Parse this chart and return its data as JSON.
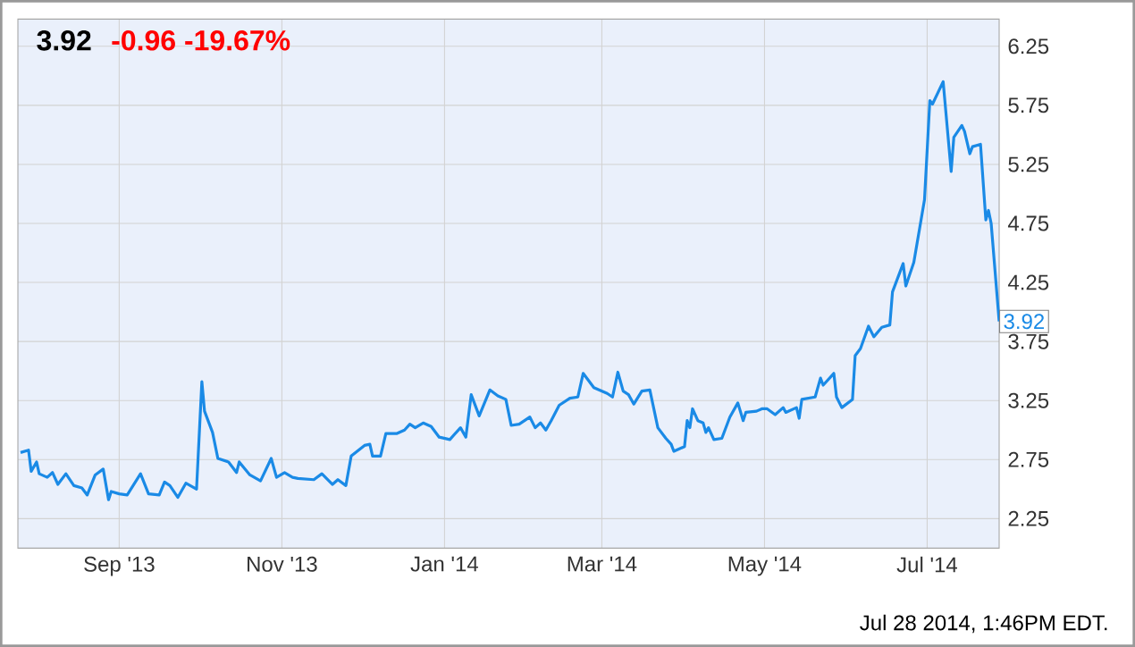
{
  "chart_data": {
    "type": "line",
    "title": "3.92",
    "subtitle": "-0.96  -19.67%",
    "x": [
      "2013-07-26",
      "2013-07-29",
      "2013-07-30",
      "2013-08-01",
      "2013-08-02",
      "2013-08-05",
      "2013-08-07",
      "2013-08-09",
      "2013-08-12",
      "2013-08-15",
      "2013-08-18",
      "2013-08-20",
      "2013-08-23",
      "2013-08-26",
      "2013-08-28",
      "2013-08-29",
      "2013-09-01",
      "2013-09-04",
      "2013-09-09",
      "2013-09-12",
      "2013-09-16",
      "2013-09-18",
      "2013-09-20",
      "2013-09-23",
      "2013-09-26",
      "2013-09-30",
      "2013-10-02",
      "2013-10-03",
      "2013-10-06",
      "2013-10-08",
      "2013-10-12",
      "2013-10-15",
      "2013-10-16",
      "2013-10-20",
      "2013-10-24",
      "2013-10-28",
      "2013-10-30",
      "2013-11-02",
      "2013-11-05",
      "2013-11-07",
      "2013-11-13",
      "2013-11-16",
      "2013-11-20",
      "2013-11-22",
      "2013-11-25",
      "2013-11-27",
      "2013-12-02",
      "2013-12-04",
      "2013-12-05",
      "2013-12-08",
      "2013-12-10",
      "2013-12-14",
      "2013-12-17",
      "2013-12-19",
      "2013-12-21",
      "2013-12-24",
      "2013-12-27",
      "2013-12-30",
      "2014-01-03",
      "2014-01-07",
      "2014-01-09",
      "2014-01-11",
      "2014-01-14",
      "2014-01-18",
      "2014-01-21",
      "2014-01-24",
      "2014-01-26",
      "2014-01-29",
      "2014-02-02",
      "2014-02-04",
      "2014-02-06",
      "2014-02-08",
      "2014-02-10",
      "2014-02-13",
      "2014-02-17",
      "2014-02-20",
      "2014-02-22",
      "2014-02-26",
      "2014-03-03",
      "2014-03-05",
      "2014-03-07",
      "2014-03-09",
      "2014-03-11",
      "2014-03-13",
      "2014-03-16",
      "2014-03-19",
      "2014-03-22",
      "2014-03-25",
      "2014-03-27",
      "2014-03-28",
      "2014-04-01",
      "2014-04-02",
      "2014-04-03",
      "2014-04-04",
      "2014-04-06",
      "2014-04-08",
      "2014-04-09",
      "2014-04-10",
      "2014-04-12",
      "2014-04-15",
      "2014-04-18",
      "2014-04-21",
      "2014-04-23",
      "2014-04-24",
      "2014-04-28",
      "2014-04-30",
      "2014-05-02",
      "2014-05-05",
      "2014-05-08",
      "2014-05-09",
      "2014-05-13",
      "2014-05-14",
      "2014-05-15",
      "2014-05-20",
      "2014-05-22",
      "2014-05-23",
      "2014-05-27",
      "2014-05-28",
      "2014-05-30",
      "2014-06-03",
      "2014-06-04",
      "2014-06-06",
      "2014-06-09",
      "2014-06-11",
      "2014-06-14",
      "2014-06-17",
      "2014-06-18",
      "2014-06-22",
      "2014-06-23",
      "2014-06-26",
      "2014-06-30",
      "2014-07-02",
      "2014-07-03",
      "2014-07-07",
      "2014-07-10",
      "2014-07-11",
      "2014-07-14",
      "2014-07-15",
      "2014-07-17",
      "2014-07-18",
      "2014-07-21",
      "2014-07-23",
      "2014-07-24",
      "2014-07-25",
      "2014-07-28"
    ],
    "values": [
      2.81,
      2.83,
      2.65,
      2.73,
      2.63,
      2.6,
      2.64,
      2.54,
      2.63,
      2.53,
      2.51,
      2.45,
      2.62,
      2.67,
      2.41,
      2.48,
      2.46,
      2.45,
      2.63,
      2.46,
      2.45,
      2.56,
      2.53,
      2.43,
      2.55,
      2.5,
      3.41,
      3.16,
      2.98,
      2.76,
      2.73,
      2.64,
      2.73,
      2.62,
      2.57,
      2.76,
      2.6,
      2.64,
      2.6,
      2.59,
      2.58,
      2.63,
      2.54,
      2.58,
      2.53,
      2.78,
      2.87,
      2.88,
      2.78,
      2.78,
      2.97,
      2.97,
      3.0,
      3.05,
      3.02,
      3.06,
      3.03,
      2.94,
      2.92,
      3.02,
      2.94,
      3.3,
      3.12,
      3.34,
      3.29,
      3.26,
      3.04,
      3.05,
      3.11,
      3.02,
      3.06,
      3.0,
      3.08,
      3.21,
      3.27,
      3.28,
      3.48,
      3.36,
      3.31,
      3.28,
      3.49,
      3.33,
      3.3,
      3.22,
      3.33,
      3.34,
      3.02,
      2.93,
      2.88,
      2.82,
      2.86,
      3.08,
      3.02,
      3.18,
      3.08,
      3.06,
      2.98,
      3.02,
      2.92,
      2.93,
      3.11,
      3.23,
      3.08,
      3.15,
      3.16,
      3.18,
      3.18,
      3.13,
      3.19,
      3.15,
      3.19,
      3.1,
      3.26,
      3.28,
      3.44,
      3.38,
      3.48,
      3.28,
      3.19,
      3.26,
      3.63,
      3.69,
      3.88,
      3.79,
      3.87,
      3.89,
      4.17,
      4.41,
      4.22,
      4.42,
      4.95,
      5.79,
      5.76,
      5.95,
      5.19,
      5.48,
      5.58,
      5.53,
      5.34,
      5.4,
      5.42,
      4.78,
      4.86,
      4.75,
      3.92
    ],
    "color": "#1a8ae6",
    "xlim": [
      "2013-07-25",
      "2014-07-28"
    ],
    "xticks": [
      {
        "value": "2013-09-01",
        "label": "Sep '13"
      },
      {
        "value": "2013-11-01",
        "label": "Nov '13"
      },
      {
        "value": "2014-01-01",
        "label": "Jan '14"
      },
      {
        "value": "2014-03-01",
        "label": "Mar '14"
      },
      {
        "value": "2014-05-01",
        "label": "May '14"
      },
      {
        "value": "2014-07-01",
        "label": "Jul '14"
      }
    ],
    "ylim": [
      2.0,
      6.48
    ],
    "yticks": [
      2.25,
      2.75,
      3.25,
      3.75,
      4.25,
      4.75,
      5.25,
      5.75,
      6.25
    ],
    "grid": true,
    "annotations": [
      {
        "text": "3.92",
        "x": "2014-07-28",
        "y": 3.92
      },
      "Jul 28 2014, 1:46PM EDT."
    ]
  }
}
